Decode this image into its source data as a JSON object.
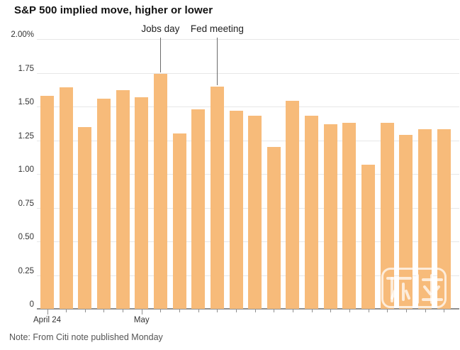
{
  "title": "S&P 500 implied move, higher or lower",
  "note": "Note: From Citi note published Monday",
  "chart_data": {
    "type": "bar",
    "title": "S&P 500 implied move, higher or lower",
    "unit": "%",
    "values": [
      1.58,
      1.64,
      1.35,
      1.56,
      1.62,
      1.57,
      1.74,
      1.3,
      1.48,
      1.65,
      1.47,
      1.43,
      1.2,
      1.54,
      1.43,
      1.37,
      1.38,
      1.07,
      1.38,
      1.29,
      1.33,
      1.33
    ],
    "bar_count": 22,
    "ylim": [
      0,
      2.0
    ],
    "y_tick_step": 0.25,
    "y_ticks": [
      "2.00%",
      "1.75",
      "1.50",
      "1.25",
      "1.00",
      "0.75",
      "0.50",
      "0.25",
      "0"
    ],
    "x_ticks": [
      {
        "label": "April 24",
        "bar_index": 0
      },
      {
        "label": "May",
        "bar_index": 5
      }
    ],
    "annotations": [
      {
        "label": "Jobs day",
        "bar_index": 6
      },
      {
        "label": "Fed meeting",
        "bar_index": 9
      }
    ],
    "bar_color": "#f7bb7a",
    "grid": true,
    "legend": "none"
  },
  "colors": {
    "bar": "#f7bb7a",
    "gridline": "#e7e7e7",
    "axis": "#8f8f8f",
    "annotation_line": "#6b6b6b",
    "title_text": "#111111",
    "tick_text": "#333333",
    "note_text": "#555555"
  }
}
